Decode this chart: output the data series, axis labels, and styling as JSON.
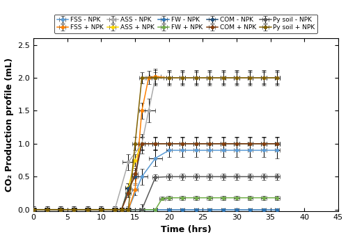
{
  "xlabel": "Time (hrs)",
  "ylabel": "CO₂ Production profile (mL)",
  "xlim": [
    0,
    45
  ],
  "ylim": [
    -0.02,
    2.6
  ],
  "xticks": [
    0,
    5,
    10,
    15,
    20,
    25,
    30,
    35,
    40,
    45
  ],
  "yticks": [
    0.0,
    0.5,
    1.0,
    1.5,
    2.0,
    2.5
  ],
  "series": [
    {
      "label": "FSS - NPK",
      "color": "#5B9BD5",
      "marker": "o",
      "x": [
        0,
        2,
        4,
        6,
        8,
        10,
        12,
        14,
        16,
        18,
        20,
        22,
        24,
        26,
        28,
        30,
        32,
        34,
        36
      ],
      "y": [
        0,
        0,
        0,
        0,
        0,
        0,
        0,
        0,
        0.5,
        0.78,
        0.9,
        0.9,
        0.9,
        0.9,
        0.9,
        0.9,
        0.9,
        0.9,
        0.9
      ],
      "yerr": [
        0.05,
        0.05,
        0.05,
        0.05,
        0.05,
        0.05,
        0.05,
        0.05,
        0.12,
        0.12,
        0.1,
        0.1,
        0.1,
        0.1,
        0.1,
        0.1,
        0.1,
        0.1,
        0.12
      ],
      "xerr": [
        0.4,
        0.4,
        0.4,
        0.4,
        0.4,
        0.4,
        0.4,
        0.4,
        0.8,
        1.0,
        0.4,
        0.4,
        0.4,
        0.4,
        0.4,
        0.4,
        0.4,
        0.4,
        0.4
      ]
    },
    {
      "label": "FSS + NPK",
      "color": "#FF8000",
      "marker": "o",
      "x": [
        0,
        2,
        4,
        6,
        8,
        10,
        12,
        13,
        14,
        15,
        16,
        17,
        18,
        20,
        22,
        24,
        26,
        28,
        30,
        32,
        34,
        36
      ],
      "y": [
        0,
        0,
        0,
        0,
        0,
        0,
        0,
        0,
        0,
        0.3,
        1.5,
        2.0,
        2.02,
        2.0,
        2.0,
        2.0,
        2.0,
        2.0,
        2.0,
        2.0,
        2.0,
        2.0
      ],
      "yerr": [
        0.03,
        0.03,
        0.03,
        0.03,
        0.03,
        0.03,
        0.03,
        0.03,
        0.03,
        0.08,
        0.12,
        0.1,
        0.12,
        0.1,
        0.1,
        0.1,
        0.1,
        0.1,
        0.1,
        0.1,
        0.1,
        0.1
      ],
      "xerr": [
        0.3,
        0.3,
        0.3,
        0.3,
        0.3,
        0.3,
        0.3,
        0.3,
        0.3,
        0.4,
        0.4,
        0.4,
        0.8,
        0.4,
        0.4,
        0.4,
        0.4,
        0.4,
        0.4,
        0.4,
        0.4,
        0.4
      ]
    },
    {
      "label": "ASS - NPK",
      "color": "#AAAAAA",
      "marker": "o",
      "x": [
        0,
        2,
        4,
        6,
        8,
        10,
        12,
        14,
        16,
        17,
        18,
        20,
        22,
        24,
        26,
        28,
        30,
        32,
        34,
        36
      ],
      "y": [
        0,
        0,
        0,
        0,
        0,
        0,
        0,
        0.72,
        1.0,
        1.5,
        2.0,
        2.0,
        2.0,
        2.0,
        2.0,
        2.0,
        2.0,
        2.0,
        2.0,
        2.0
      ],
      "yerr": [
        0.05,
        0.05,
        0.05,
        0.05,
        0.05,
        0.05,
        0.05,
        0.12,
        0.15,
        0.18,
        0.12,
        0.12,
        0.12,
        0.12,
        0.12,
        0.12,
        0.12,
        0.12,
        0.12,
        0.12
      ],
      "xerr": [
        0.4,
        0.4,
        0.4,
        0.4,
        0.4,
        0.4,
        0.4,
        0.9,
        0.9,
        1.0,
        1.2,
        0.4,
        0.4,
        0.4,
        0.4,
        0.4,
        0.4,
        0.4,
        0.4,
        0.4
      ]
    },
    {
      "label": "ASS + NPK",
      "color": "#FFD700",
      "marker": "o",
      "x": [
        0,
        2,
        4,
        6,
        8,
        10,
        12,
        13,
        14,
        15,
        16,
        18,
        20,
        22,
        24,
        26,
        28,
        30,
        32,
        34,
        36
      ],
      "y": [
        0,
        0,
        0,
        0,
        0,
        0,
        0,
        0,
        0.33,
        0.75,
        1.0,
        1.0,
        1.0,
        1.0,
        1.0,
        1.0,
        1.0,
        1.0,
        1.0,
        1.0,
        1.0
      ],
      "yerr": [
        0.03,
        0.03,
        0.03,
        0.03,
        0.03,
        0.03,
        0.03,
        0.03,
        0.07,
        0.09,
        0.09,
        0.09,
        0.09,
        0.09,
        0.09,
        0.09,
        0.09,
        0.09,
        0.09,
        0.09,
        0.09
      ],
      "xerr": [
        0.3,
        0.3,
        0.3,
        0.3,
        0.3,
        0.3,
        0.3,
        0.3,
        0.4,
        0.4,
        0.4,
        0.4,
        0.4,
        0.4,
        0.4,
        0.4,
        0.4,
        0.4,
        0.4,
        0.4,
        0.4
      ]
    },
    {
      "label": "FW - NPK",
      "color": "#2E75B6",
      "marker": "o",
      "x": [
        0,
        2,
        4,
        6,
        8,
        10,
        12,
        14,
        16,
        18,
        20,
        22,
        24,
        26,
        28,
        30,
        32,
        34,
        36
      ],
      "y": [
        0,
        0,
        0,
        0,
        0,
        0,
        0,
        0,
        0,
        0,
        0,
        0,
        0,
        0,
        0,
        0,
        0,
        0,
        0
      ],
      "yerr": [
        0.02,
        0.02,
        0.02,
        0.02,
        0.02,
        0.02,
        0.02,
        0.02,
        0.02,
        0.02,
        0.02,
        0.02,
        0.02,
        0.02,
        0.02,
        0.02,
        0.02,
        0.02,
        0.02
      ],
      "xerr": [
        0.3,
        0.3,
        0.3,
        0.3,
        0.3,
        0.3,
        0.3,
        0.3,
        0.3,
        0.3,
        0.3,
        0.3,
        0.3,
        0.3,
        0.3,
        0.3,
        0.3,
        0.3,
        0.3
      ]
    },
    {
      "label": "FW + NPK",
      "color": "#70AD47",
      "marker": "s",
      "x": [
        0,
        2,
        4,
        6,
        8,
        10,
        12,
        14,
        16,
        18,
        19,
        20,
        22,
        24,
        26,
        28,
        30,
        32,
        34,
        36
      ],
      "y": [
        0,
        0,
        0,
        0,
        0,
        0,
        0,
        0,
        0,
        0,
        0.17,
        0.18,
        0.18,
        0.18,
        0.18,
        0.18,
        0.18,
        0.18,
        0.18,
        0.18
      ],
      "yerr": [
        0.02,
        0.02,
        0.02,
        0.02,
        0.02,
        0.02,
        0.02,
        0.02,
        0.02,
        0.02,
        0.03,
        0.03,
        0.03,
        0.03,
        0.03,
        0.03,
        0.03,
        0.03,
        0.03,
        0.03
      ],
      "xerr": [
        0.3,
        0.3,
        0.3,
        0.3,
        0.3,
        0.3,
        0.3,
        0.3,
        0.3,
        0.3,
        0.4,
        0.4,
        0.4,
        0.4,
        0.4,
        0.4,
        0.4,
        0.4,
        0.4,
        0.4
      ]
    },
    {
      "label": "COM - NPK",
      "color": "#1F4E79",
      "marker": "o",
      "x": [
        0,
        2,
        4,
        6,
        8,
        10,
        12,
        13,
        14,
        15,
        16,
        18,
        20,
        22,
        24,
        26,
        28,
        30,
        32,
        34,
        36
      ],
      "y": [
        0,
        0,
        0,
        0,
        0,
        0,
        0,
        0,
        0.32,
        0.5,
        1.0,
        1.0,
        1.0,
        1.0,
        1.0,
        1.0,
        1.0,
        1.0,
        1.0,
        1.0,
        1.0
      ],
      "yerr": [
        0.03,
        0.03,
        0.03,
        0.03,
        0.03,
        0.03,
        0.03,
        0.03,
        0.08,
        0.1,
        0.1,
        0.1,
        0.1,
        0.1,
        0.1,
        0.1,
        0.1,
        0.1,
        0.1,
        0.1,
        0.1
      ],
      "xerr": [
        0.3,
        0.3,
        0.3,
        0.3,
        0.3,
        0.3,
        0.3,
        0.3,
        0.4,
        0.4,
        0.4,
        0.4,
        0.4,
        0.4,
        0.4,
        0.4,
        0.4,
        0.4,
        0.4,
        0.4,
        0.4
      ]
    },
    {
      "label": "COM + NPK",
      "color": "#843C0C",
      "marker": "o",
      "x": [
        0,
        2,
        4,
        6,
        8,
        10,
        12,
        13,
        14,
        15,
        16,
        18,
        20,
        22,
        24,
        26,
        28,
        30,
        32,
        34,
        36
      ],
      "y": [
        0,
        0,
        0,
        0,
        0,
        0,
        0,
        0,
        0.25,
        0.55,
        1.0,
        1.0,
        1.0,
        1.0,
        1.0,
        1.0,
        1.0,
        1.0,
        1.0,
        1.0,
        1.0
      ],
      "yerr": [
        0.03,
        0.03,
        0.03,
        0.03,
        0.03,
        0.03,
        0.03,
        0.03,
        0.06,
        0.08,
        0.1,
        0.1,
        0.1,
        0.1,
        0.1,
        0.1,
        0.1,
        0.1,
        0.1,
        0.1,
        0.1
      ],
      "xerr": [
        0.3,
        0.3,
        0.3,
        0.3,
        0.3,
        0.3,
        0.3,
        0.3,
        0.4,
        0.4,
        0.4,
        0.4,
        0.4,
        0.4,
        0.4,
        0.4,
        0.4,
        0.4,
        0.4,
        0.4,
        0.4
      ]
    },
    {
      "label": "Py soil - NPK",
      "color": "#595959",
      "marker": "o",
      "x": [
        0,
        2,
        4,
        6,
        8,
        10,
        12,
        14,
        16,
        18,
        20,
        22,
        24,
        26,
        28,
        30,
        32,
        34,
        36
      ],
      "y": [
        0,
        0,
        0,
        0,
        0,
        0,
        0,
        0,
        0,
        0.49,
        0.5,
        0.5,
        0.5,
        0.5,
        0.5,
        0.5,
        0.5,
        0.5,
        0.5
      ],
      "yerr": [
        0.03,
        0.03,
        0.03,
        0.03,
        0.03,
        0.03,
        0.03,
        0.03,
        0.08,
        0.05,
        0.05,
        0.05,
        0.05,
        0.05,
        0.05,
        0.05,
        0.05,
        0.05,
        0.05
      ],
      "xerr": [
        0.3,
        0.3,
        0.3,
        0.3,
        0.3,
        0.3,
        0.3,
        0.3,
        0.4,
        0.4,
        0.4,
        0.4,
        0.4,
        0.4,
        0.4,
        0.4,
        0.4,
        0.4,
        0.4
      ]
    },
    {
      "label": "Py soil + NPK",
      "color": "#806000",
      "marker": "o",
      "x": [
        0,
        2,
        4,
        6,
        8,
        10,
        12,
        13,
        14,
        15,
        16,
        18,
        20,
        22,
        24,
        26,
        28,
        30,
        32,
        34,
        36
      ],
      "y": [
        0,
        0,
        0,
        0,
        0,
        0,
        0,
        0,
        0,
        1.0,
        2.0,
        2.0,
        2.0,
        2.0,
        2.0,
        2.0,
        2.0,
        2.0,
        2.0,
        2.0,
        2.0
      ],
      "yerr": [
        0.03,
        0.03,
        0.03,
        0.03,
        0.03,
        0.03,
        0.03,
        0.03,
        0.03,
        0.1,
        0.08,
        0.08,
        0.08,
        0.08,
        0.08,
        0.08,
        0.08,
        0.08,
        0.08,
        0.08,
        0.08
      ],
      "xerr": [
        0.3,
        0.3,
        0.3,
        0.3,
        0.3,
        0.3,
        0.3,
        0.3,
        0.3,
        0.4,
        0.4,
        0.4,
        0.4,
        0.4,
        0.4,
        0.4,
        0.4,
        0.4,
        0.4,
        0.4,
        0.4
      ]
    }
  ],
  "legend_order": [
    0,
    1,
    2,
    3,
    4,
    5,
    6,
    7,
    8,
    9
  ],
  "legend_ncol": 5,
  "legend_fontsize": 6.5,
  "axis_fontsize": 9,
  "tick_fontsize": 8,
  "figsize": [
    5.0,
    3.44
  ],
  "dpi": 100
}
